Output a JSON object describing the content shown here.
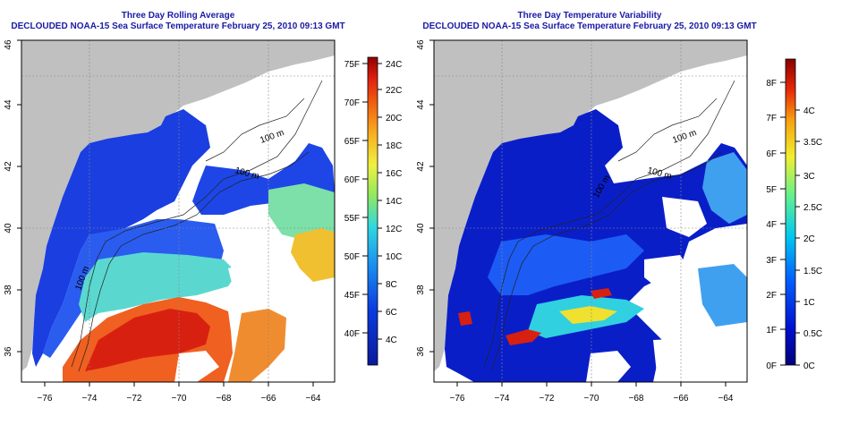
{
  "left_panel": {
    "title": "Three Day Rolling Average",
    "subtitle": "DECLOUDED NOAA-15 Sea Surface Temperature February 25, 2010 09:13 GMT",
    "contour_labels": [
      "100 m",
      "100 m",
      "100 m"
    ],
    "colorbar_f": [
      "75F",
      "70F",
      "65F",
      "60F",
      "55F",
      "50F",
      "45F",
      "40F"
    ],
    "colorbar_c": [
      "24C",
      "22C",
      "20C",
      "18C",
      "16C",
      "14C",
      "12C",
      "10C",
      "8C",
      "6C",
      "4C"
    ]
  },
  "right_panel": {
    "title": "Three Day Temperature Variability",
    "subtitle": "DECLOUDED NOAA-15 Sea Surface Temperature February 25, 2010 09:13 GMT",
    "contour_labels": [
      "100 m",
      "100 m",
      "100 m"
    ],
    "colorbar_f": [
      "8F",
      "7F",
      "6F",
      "5F",
      "4F",
      "3F",
      "2F",
      "1F",
      "0F"
    ],
    "colorbar_c": [
      "4C",
      "3.5C",
      "3C",
      "2.5C",
      "2C",
      "1.5C",
      "1C",
      "0.5C",
      "0C"
    ]
  },
  "axes": {
    "lon_ticks": [
      "−76",
      "−74",
      "−72",
      "−70",
      "−68",
      "−66",
      "−64"
    ],
    "lat_ticks": [
      "46",
      "44",
      "42",
      "40",
      "38",
      "36"
    ]
  },
  "colors": {
    "land": "#c0c0c0",
    "cloud": "#ffffff",
    "title": "#1a1aa6"
  }
}
